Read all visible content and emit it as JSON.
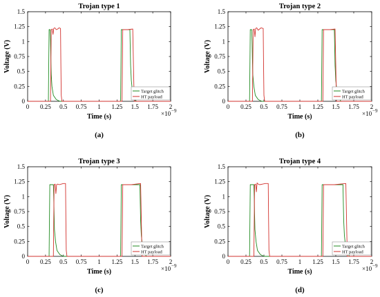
{
  "colors": {
    "target_glitch": "#1f8a1f",
    "ht_payload": "#d2302c",
    "axis": "#000000",
    "legend_border": "#7f7f7f"
  },
  "chart_data": [
    {
      "type": "line",
      "panel_label": "(a)",
      "title": "Trojan type 1",
      "xlabel": "Time (s)",
      "ylabel": "Voltage (V)",
      "x_exponent": "×10",
      "x_exponent_power": "−9",
      "xlim": [
        0,
        2
      ],
      "ylim": [
        0,
        1.5
      ],
      "xticks": [
        "0",
        "0.25",
        "0.5",
        "0.75",
        "1",
        "1.25",
        "1.5",
        "1.75",
        "2"
      ],
      "yticks": [
        "0",
        "0.25",
        "0.5",
        "0.75",
        "1",
        "1.25",
        "1.5"
      ],
      "legend_position": "lower-right",
      "series": [
        {
          "name": "Target glitch",
          "color": "#1f8a1f",
          "x": [
            0,
            0.29,
            0.3,
            0.315,
            0.32,
            0.325,
            0.33,
            0.34,
            0.36,
            0.4,
            0.45,
            1.3,
            1.31,
            1.32,
            1.43,
            1.435,
            1.44,
            1.45,
            1.47,
            1.52,
            2.0
          ],
          "y": [
            0,
            0,
            1.2,
            1.2,
            1.0,
            0.7,
            0.45,
            0.25,
            0.1,
            0.03,
            0,
            0,
            1.2,
            1.2,
            1.2,
            0.9,
            0.6,
            0.35,
            0.12,
            0,
            0
          ]
        },
        {
          "name": "HT payload",
          "color": "#d2302c",
          "x": [
            0,
            0.32,
            0.33,
            0.345,
            0.355,
            0.365,
            0.38,
            0.4,
            0.42,
            0.44,
            0.46,
            0.465,
            0.47,
            0.48,
            1.32,
            1.33,
            1.35,
            1.4,
            1.47,
            1.48,
            1.49,
            2.0
          ],
          "y": [
            0,
            0,
            1.2,
            1.21,
            1.12,
            1.22,
            1.23,
            1.2,
            1.21,
            1.23,
            1.22,
            0.6,
            0.1,
            0,
            0,
            1.2,
            1.2,
            1.2,
            1.21,
            0.6,
            0,
            0
          ]
        }
      ]
    },
    {
      "type": "line",
      "panel_label": "(b)",
      "title": "Trojan type 2",
      "xlabel": "Time (s)",
      "ylabel": "Voltage (V)",
      "x_exponent": "×10",
      "x_exponent_power": "−9",
      "xlim": [
        0,
        2
      ],
      "ylim": [
        0,
        1.5
      ],
      "xticks": [
        "0",
        "0.25",
        "0.5",
        "0.75",
        "1",
        "1.25",
        "1.5",
        "1.75",
        "2"
      ],
      "yticks": [
        "0",
        "0.25",
        "0.5",
        "0.75",
        "1",
        "1.25",
        "1.5"
      ],
      "legend_position": "lower-right",
      "series": [
        {
          "name": "Target glitch",
          "color": "#1f8a1f",
          "x": [
            0,
            0.3,
            0.31,
            0.33,
            0.335,
            0.34,
            0.345,
            0.36,
            0.38,
            0.42,
            0.47,
            1.3,
            1.31,
            1.32,
            1.48,
            1.485,
            1.49,
            1.5,
            1.52,
            1.57,
            2.0
          ],
          "y": [
            0,
            0,
            1.2,
            1.2,
            1.0,
            0.7,
            0.45,
            0.25,
            0.1,
            0.03,
            0,
            0,
            1.2,
            1.2,
            1.2,
            0.9,
            0.6,
            0.35,
            0.12,
            0,
            0
          ]
        },
        {
          "name": "HT payload",
          "color": "#d2302c",
          "x": [
            0,
            0.34,
            0.35,
            0.365,
            0.375,
            0.385,
            0.4,
            0.42,
            0.44,
            0.46,
            0.49,
            0.495,
            0.5,
            0.51,
            1.32,
            1.33,
            1.35,
            1.42,
            1.49,
            1.5,
            1.51,
            2.0
          ],
          "y": [
            0,
            0,
            1.2,
            1.21,
            1.08,
            1.22,
            1.23,
            1.19,
            1.21,
            1.23,
            1.22,
            0.6,
            0.1,
            0,
            0,
            1.2,
            1.2,
            1.2,
            1.21,
            0.6,
            0,
            0
          ]
        }
      ]
    },
    {
      "type": "line",
      "panel_label": "(c)",
      "title": "Trojan type 3",
      "xlabel": "Time (s)",
      "ylabel": "Voltage (V)",
      "x_exponent": "×10",
      "x_exponent_power": "−9",
      "xlim": [
        0,
        2
      ],
      "ylim": [
        0,
        1.5
      ],
      "xticks": [
        "0",
        "0.25",
        "0.5",
        "0.75",
        "1",
        "1.25",
        "1.5",
        "1.75",
        "2"
      ],
      "yticks": [
        "0",
        "0.25",
        "0.5",
        "0.75",
        "1",
        "1.25",
        "1.5"
      ],
      "legend_position": "lower-right",
      "series": [
        {
          "name": "Target glitch",
          "color": "#1f8a1f",
          "x": [
            0,
            0.3,
            0.31,
            0.36,
            0.365,
            0.37,
            0.375,
            0.39,
            0.41,
            0.45,
            0.5,
            1.3,
            1.31,
            1.32,
            1.57,
            1.575,
            1.58,
            1.59,
            1.61,
            1.66,
            2.0
          ],
          "y": [
            0,
            0,
            1.2,
            1.2,
            1.0,
            0.7,
            0.45,
            0.25,
            0.1,
            0.03,
            0,
            0,
            1.2,
            1.2,
            1.2,
            0.9,
            0.6,
            0.35,
            0.12,
            0,
            0
          ]
        },
        {
          "name": "HT payload",
          "color": "#d2302c",
          "x": [
            0,
            0.36,
            0.37,
            0.385,
            0.395,
            0.405,
            0.42,
            0.44,
            0.47,
            0.5,
            0.53,
            0.535,
            0.54,
            0.55,
            1.32,
            1.33,
            1.36,
            1.45,
            1.58,
            1.59,
            1.6,
            2.0
          ],
          "y": [
            0,
            0,
            1.2,
            1.21,
            1.05,
            1.2,
            1.21,
            1.2,
            1.21,
            1.22,
            1.22,
            0.6,
            0.1,
            0,
            0,
            1.2,
            1.2,
            1.2,
            1.22,
            0.6,
            0,
            0
          ]
        }
      ]
    },
    {
      "type": "line",
      "panel_label": "(d)",
      "title": "Trojan type 4",
      "xlabel": "Time (s)",
      "ylabel": "Voltage (V)",
      "x_exponent": "×10",
      "x_exponent_power": "−9",
      "xlim": [
        0,
        2
      ],
      "ylim": [
        0,
        1.5
      ],
      "xticks": [
        "0",
        "0.25",
        "0.5",
        "0.75",
        "1",
        "1.25",
        "1.5",
        "1.75",
        "2"
      ],
      "yticks": [
        "0",
        "0.25",
        "0.5",
        "0.75",
        "1",
        "1.25",
        "1.5"
      ],
      "legend_position": "lower-right",
      "series": [
        {
          "name": "Target glitch",
          "color": "#1f8a1f",
          "x": [
            0,
            0.3,
            0.31,
            0.36,
            0.365,
            0.37,
            0.375,
            0.39,
            0.41,
            0.45,
            0.5,
            1.3,
            1.31,
            1.32,
            1.6,
            1.605,
            1.61,
            1.62,
            1.64,
            1.69,
            2.0
          ],
          "y": [
            0,
            0,
            1.2,
            1.2,
            1.0,
            0.7,
            0.45,
            0.25,
            0.1,
            0.03,
            0,
            0,
            1.2,
            1.2,
            1.2,
            0.9,
            0.6,
            0.35,
            0.12,
            0,
            0
          ]
        },
        {
          "name": "HT payload",
          "color": "#d2302c",
          "x": [
            0,
            0.36,
            0.37,
            0.385,
            0.395,
            0.405,
            0.42,
            0.44,
            0.48,
            0.52,
            0.56,
            0.565,
            0.57,
            0.58,
            1.32,
            1.33,
            1.36,
            1.48,
            1.64,
            1.65,
            1.66,
            2.0
          ],
          "y": [
            0,
            0,
            1.2,
            1.21,
            1.08,
            1.23,
            1.21,
            1.2,
            1.21,
            1.22,
            1.22,
            0.6,
            0.1,
            0,
            0,
            1.2,
            1.2,
            1.2,
            1.22,
            0.6,
            0,
            0
          ]
        }
      ]
    }
  ]
}
